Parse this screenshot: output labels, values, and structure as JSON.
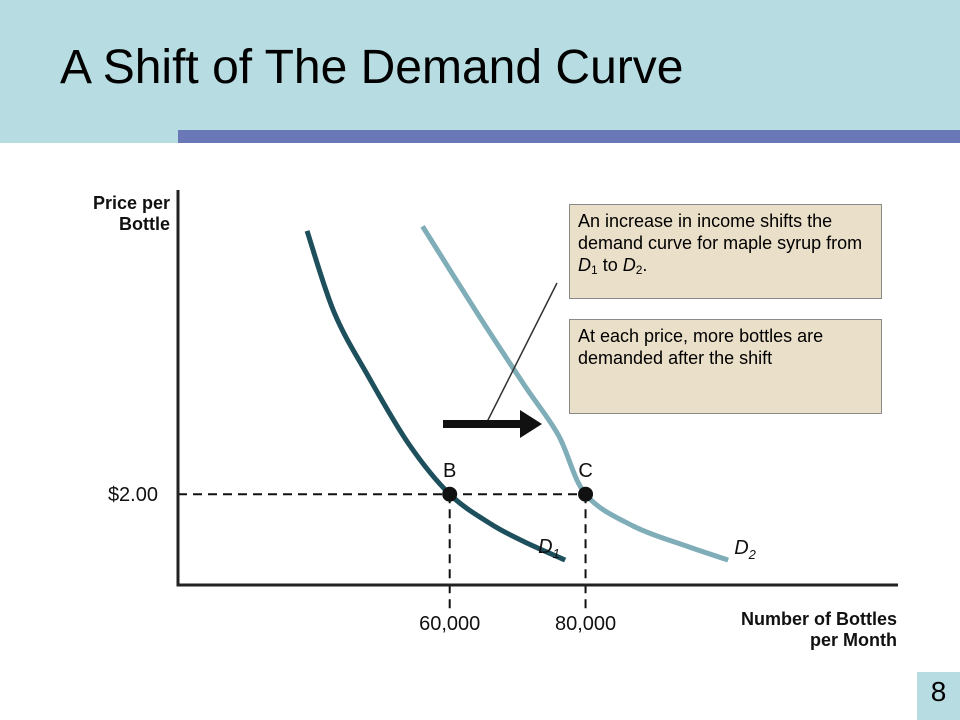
{
  "slide": {
    "title": "A Shift of The Demand Curve",
    "page_number": "8",
    "colors": {
      "header": "#b7dde3",
      "accent_bar": "#6a78b8",
      "callout_bg": "#eadfc8"
    }
  },
  "callouts": {
    "income_shift": {
      "text_1": "An increase in income shifts the demand curve for maple syrup from ",
      "d1": "D",
      "d1_sub": "1",
      "mid": " to ",
      "d2": "D",
      "d2_sub": "2",
      "end": "."
    },
    "more_demanded": "At each price, more bottles are demanded after the shift"
  },
  "chart_data": {
    "type": "line",
    "ylabel_line1": "Price per",
    "ylabel_line2": "Bottle",
    "xlabel_line1": "Number of Bottles",
    "xlabel_line2": "per Month",
    "x_ticks": [
      {
        "value": 60000,
        "label": "60,000"
      },
      {
        "value": 80000,
        "label": "80,000"
      }
    ],
    "y_ticks": [
      {
        "value": 2.0,
        "label": "$2.00"
      }
    ],
    "xlim": [
      20000,
      126000
    ],
    "ylim": [
      0,
      8.7
    ],
    "series": [
      {
        "name": "D",
        "sub": "1",
        "color": "#1d4f5c",
        "points": [
          [
            39000,
            7.8
          ],
          [
            43000,
            6.0
          ],
          [
            48000,
            4.6
          ],
          [
            54000,
            3.1
          ],
          [
            60000,
            2.0
          ],
          [
            66000,
            1.35
          ],
          [
            71000,
            0.95
          ],
          [
            77000,
            0.55
          ]
        ]
      },
      {
        "name": "D",
        "sub": "2",
        "color": "#7fadb8",
        "points": [
          [
            56000,
            7.9
          ],
          [
            64000,
            6.0
          ],
          [
            71000,
            4.4
          ],
          [
            76000,
            3.3
          ],
          [
            80000,
            2.0
          ],
          [
            87000,
            1.3
          ],
          [
            95000,
            0.85
          ],
          [
            101000,
            0.55
          ]
        ]
      }
    ],
    "points": [
      {
        "label": "B",
        "x": 60000,
        "y": 2.0
      },
      {
        "label": "C",
        "x": 80000,
        "y": 2.0
      }
    ],
    "grid": false
  }
}
